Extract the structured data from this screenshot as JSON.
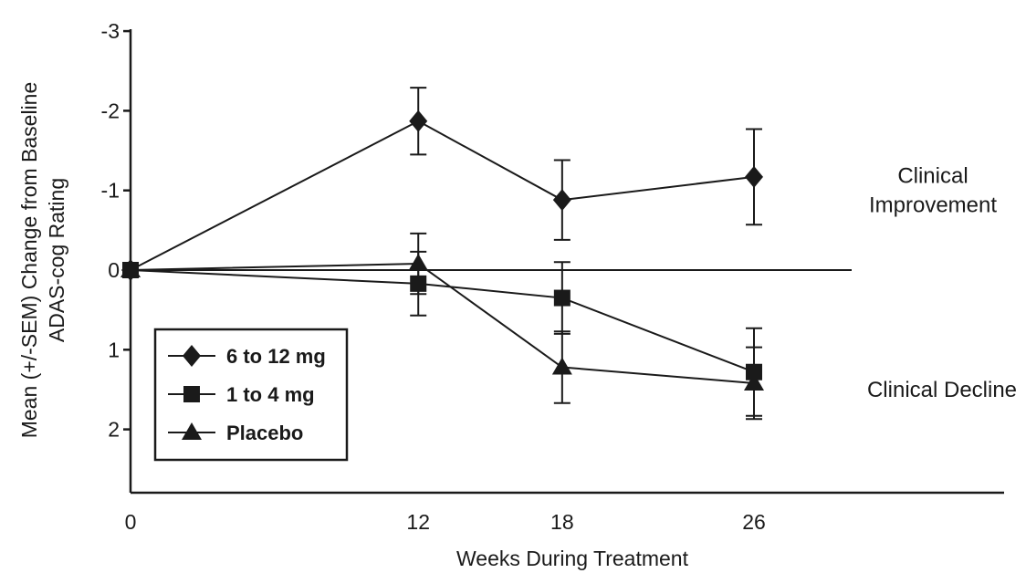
{
  "chart_data": {
    "type": "line",
    "xlabel": "Weeks During Treatment",
    "ylabel_lines": [
      "Mean (+/-SEM) Change from Baseline",
      "ADAS-cog Rating"
    ],
    "x_ticks": [
      0,
      12,
      18,
      26
    ],
    "y_ticks": [
      -3,
      -2,
      -1,
      0,
      1,
      2
    ],
    "y_tick_labels": [
      "-3",
      "-2",
      "-1",
      "0",
      "1",
      "2"
    ],
    "xlim": [
      0,
      36
    ],
    "ylim": [
      -3,
      2.7
    ],
    "y_inverted": true,
    "series": [
      {
        "name": "6 to 12 mg",
        "marker": "diamond",
        "color": "#1a1a1a",
        "x": [
          0,
          12,
          18,
          26
        ],
        "y": [
          0,
          -1.87,
          -0.88,
          -1.17
        ],
        "err": [
          0,
          0.42,
          0.5,
          0.6
        ]
      },
      {
        "name": "1 to 4 mg",
        "marker": "square",
        "color": "#1a1a1a",
        "x": [
          0,
          12,
          18,
          26
        ],
        "y": [
          0,
          0.17,
          0.35,
          1.28
        ],
        "err": [
          0,
          0.4,
          0.45,
          0.55
        ]
      },
      {
        "name": "Placebo",
        "marker": "triangle",
        "color": "#1a1a1a",
        "x": [
          0,
          12,
          18,
          26
        ],
        "y": [
          0,
          -0.08,
          1.22,
          1.42
        ],
        "err": [
          0,
          0.38,
          0.45,
          0.45
        ]
      }
    ],
    "annotations": [
      {
        "lines": [
          "Clinical",
          "Improvement"
        ],
        "y": -1.0
      },
      {
        "lines": [
          "Clinical Decline"
        ],
        "y": 1.5
      }
    ],
    "legend_position": "bottom-left",
    "grid": false
  }
}
